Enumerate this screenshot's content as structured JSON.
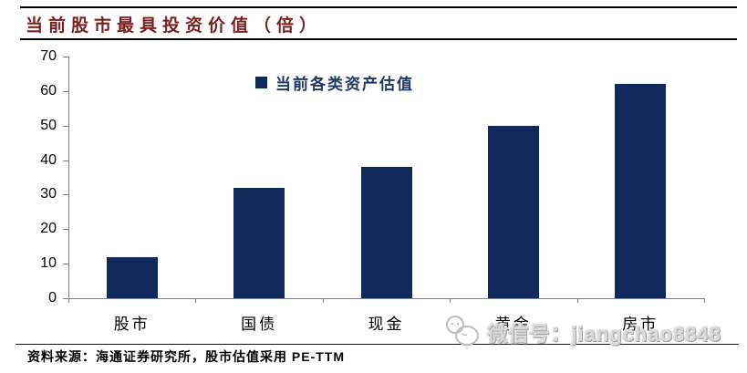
{
  "header": {
    "title": "当前股市最具投资价值（倍）",
    "title_color": "#7a1f1f"
  },
  "chart_data": {
    "type": "bar",
    "title": "当前股市最具投资价值（倍）",
    "legend": "当前各类资产估值",
    "legend_position": "top-center",
    "categories": [
      "股市",
      "国债",
      "现金",
      "黄金",
      "房市"
    ],
    "values": [
      12,
      32,
      38,
      50,
      62
    ],
    "xlabel": "",
    "ylabel": "",
    "ylim": [
      0,
      70
    ],
    "yticks": [
      0,
      10,
      20,
      30,
      40,
      50,
      60,
      70
    ],
    "grid": false,
    "bar_color": "#10295c",
    "legend_text_color": "#1f3864",
    "axis_color": "#808080"
  },
  "footer": {
    "source": "资料来源：海通证券研究所，股市估值采用 PE-TTM",
    "watermark": "微信号：jiangchao8848",
    "watermark_color": "#d9d9d9",
    "mascot_icon": "wechat-mascot-icon"
  }
}
